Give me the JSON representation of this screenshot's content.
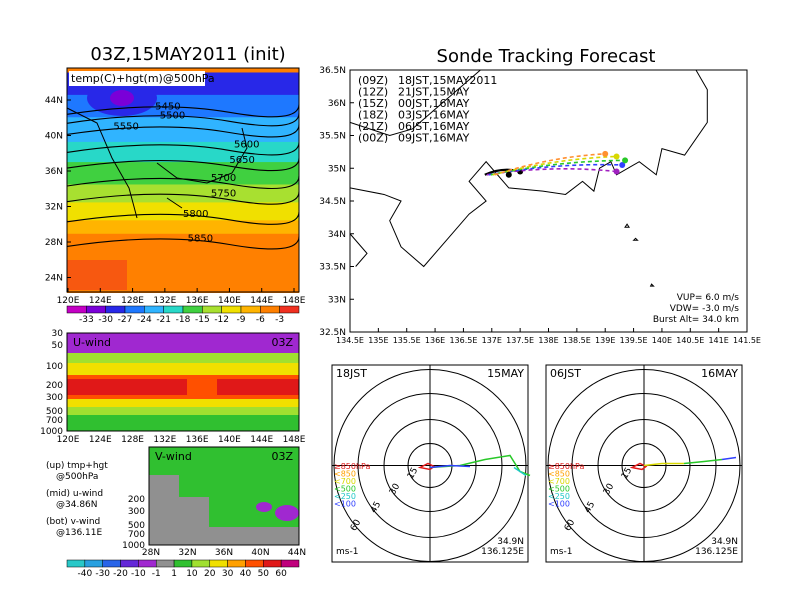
{
  "left": {
    "title": "03Z,15MAY2011 (init)",
    "map": {
      "label": "temp(C)+hgt(m)@500hPa",
      "lat_ticks": [
        "44N",
        "40N",
        "36N",
        "32N",
        "28N",
        "24N"
      ],
      "lon_ticks": [
        "120E",
        "124E",
        "128E",
        "132E",
        "136E",
        "140E",
        "144E",
        "148E"
      ],
      "contours": [
        {
          "value": "5450",
          "y": 0.18
        },
        {
          "value": "5500",
          "y": 0.22
        },
        {
          "value": "5550",
          "y": 0.27
        },
        {
          "value": "5600",
          "y": 0.35
        },
        {
          "value": "5650",
          "y": 0.42
        },
        {
          "value": "5700",
          "y": 0.5
        },
        {
          "value": "5750",
          "y": 0.57
        },
        {
          "value": "5800",
          "y": 0.66
        },
        {
          "value": "5850",
          "y": 0.77
        }
      ],
      "colorbar": {
        "labels": [
          "-33",
          "-30",
          "-27",
          "-24",
          "-21",
          "-18",
          "-15",
          "-12",
          "-9",
          "-6",
          "-3"
        ],
        "colors": [
          "#c400c4",
          "#7a00d8",
          "#2828e8",
          "#1e78ff",
          "#30b4ff",
          "#28d8c8",
          "#40d040",
          "#a8e030",
          "#f0e000",
          "#ffb400",
          "#ff8000",
          "#f03020"
        ]
      }
    },
    "u_panel": {
      "label": "U-wind",
      "time": "03Z",
      "p_ticks": [
        "30",
        "50",
        "100",
        "200",
        "300",
        "500",
        "700",
        "1000"
      ],
      "lon_ticks": [
        "120E",
        "124E",
        "128E",
        "132E",
        "136E",
        "140E",
        "144E",
        "148E"
      ]
    },
    "v_panel": {
      "label": "V-wind",
      "time": "03Z",
      "p_ticks": [
        "200",
        "300",
        "500",
        "700",
        "1000"
      ],
      "lat_ticks": [
        "28N",
        "32N",
        "36N",
        "40N",
        "44N"
      ]
    },
    "legend": [
      {
        "a": "(up) tmp+hgt",
        "b": "@500hPa"
      },
      {
        "a": "(mid) u-wind",
        "b": "@34.86N"
      },
      {
        "a": "(bot) v-wind",
        "b": "@136.11E"
      }
    ],
    "wind_colorbar": {
      "labels": [
        "-40",
        "-30",
        "-20",
        "-10",
        "-1",
        "1",
        "10",
        "20",
        "30",
        "40",
        "50",
        "60"
      ],
      "colors": [
        "#28c8c8",
        "#28a0e0",
        "#2864e8",
        "#6428d8",
        "#a028d0",
        "#909090",
        "#30c030",
        "#a0e030",
        "#f0e000",
        "#ffa000",
        "#ff5000",
        "#e01818",
        "#c0007c"
      ]
    }
  },
  "right": {
    "title": "Sonde Tracking Forecast",
    "map": {
      "lat_ticks": [
        "36.5N",
        "36N",
        "35.5N",
        "35N",
        "34.5N",
        "34N",
        "33.5N",
        "33N",
        "32.5N"
      ],
      "lon_ticks": [
        "134.5E",
        "135E",
        "135.5E",
        "136E",
        "136.5E",
        "137E",
        "137.5E",
        "138E",
        "138.5E",
        "139E",
        "139.5E",
        "140E",
        "140.5E",
        "141E",
        "141.5E"
      ],
      "lon_range": [
        134.5,
        141.5
      ],
      "lat_range": [
        32.5,
        36.5
      ],
      "launch": {
        "lon": 137.3,
        "lat": 34.9
      },
      "tracks": [
        {
          "code": "(09Z)",
          "label": "18JST,15MAY2011",
          "color": "#000000",
          "dash": false,
          "end": [
            137.5,
            34.95
          ]
        },
        {
          "code": "(12Z)",
          "label": "21JST,15MAY",
          "color": "#a020c0",
          "dash": true,
          "end": [
            139.2,
            34.95
          ]
        },
        {
          "code": "(15Z)",
          "label": "00JST,16MAY",
          "color": "#3040ff",
          "dash": true,
          "end": [
            139.3,
            35.05
          ]
        },
        {
          "code": "(18Z)",
          "label": "03JST,16MAY",
          "color": "#28c828",
          "dash": true,
          "end": [
            139.35,
            35.12
          ]
        },
        {
          "code": "(21Z)",
          "label": "06JST,16MAY",
          "color": "#d8d800",
          "dash": true,
          "end": [
            139.2,
            35.18
          ]
        },
        {
          "code": "(00Z)",
          "label": "09JST,16MAY",
          "color": "#ff9030",
          "dash": true,
          "end": [
            139.0,
            35.22
          ]
        }
      ],
      "params": [
        "VUP=  6.0  m/s",
        "VDW= -3.0  m/s",
        "Burst Alt= 34.0  km"
      ]
    },
    "hodographs": [
      {
        "time": "18JST",
        "date": "15MAY",
        "lat": "34.9N",
        "lon": "136.125E",
        "unit": "ms-1"
      },
      {
        "time": "06JST",
        "date": "16MAY",
        "lat": "34.9N",
        "lon": "136.125E",
        "unit": "ms-1"
      }
    ],
    "ring_labels": [
      "15",
      "30",
      "45",
      "60"
    ],
    "levels": [
      {
        "label": "≥850hPa",
        "color": "#e01818"
      },
      {
        "label": "<850",
        "color": "#ffa000"
      },
      {
        "label": "<700",
        "color": "#d8d800"
      },
      {
        "label": "<500",
        "color": "#28c828"
      },
      {
        "label": "<250",
        "color": "#20c8c8"
      },
      {
        "label": "<100",
        "color": "#3040ff"
      }
    ]
  }
}
